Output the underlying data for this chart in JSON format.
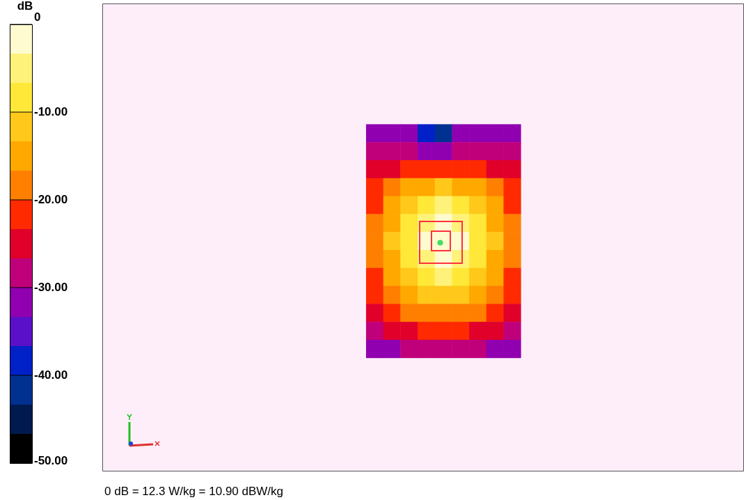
{
  "chart_data": {
    "type": "heatmap",
    "clabel": "dB",
    "annotations": [
      "0 dB = 12.3 W/kg = 10.90 dBW/kg"
    ],
    "categories": [
      null,
      null,
      null,
      null,
      null,
      null,
      null,
      null,
      null
    ],
    "y_categories": [
      null,
      null,
      null,
      null,
      null,
      null,
      null,
      null,
      null,
      null,
      null,
      null,
      null
    ],
    "cells": [
      [
        -30,
        -30,
        -31,
        -38,
        -42,
        -33,
        -30,
        -30,
        -30
      ],
      [
        -28,
        -28,
        -28,
        -30,
        -31,
        -29,
        -28,
        -28,
        -28
      ],
      [
        -25,
        -24,
        -23,
        -22,
        -22,
        -22,
        -23,
        -24,
        -25
      ],
      [
        -22,
        -19,
        -16,
        -14,
        -13,
        -14,
        -16,
        -19,
        -22
      ],
      [
        -20,
        -16,
        -12,
        -8,
        -6,
        -8,
        -12,
        -16,
        -20
      ],
      [
        -19,
        -14,
        -9,
        -4,
        -2,
        -4,
        -9,
        -14,
        -19
      ],
      [
        -19,
        -13,
        -8,
        -3,
        -1,
        -3,
        -8,
        -13,
        -19
      ],
      [
        -19,
        -14,
        -9,
        -4,
        -2,
        -4,
        -9,
        -14,
        -19
      ],
      [
        -20,
        -15,
        -11,
        -7,
        -5,
        -7,
        -11,
        -15,
        -20
      ],
      [
        -21,
        -17,
        -14,
        -12,
        -11,
        -12,
        -14,
        -17,
        -21
      ],
      [
        -24,
        -21,
        -19,
        -18,
        -18,
        -18,
        -19,
        -21,
        -24
      ],
      [
        -27,
        -26,
        -24,
        -23,
        -23,
        -23,
        -24,
        -26,
        -27
      ],
      [
        -31,
        -30,
        -29,
        -29,
        -29,
        -29,
        -29,
        -30,
        -31
      ]
    ],
    "clim": [
      -50,
      0
    ],
    "cticks": [
      {
        "value": 0,
        "label": "0"
      },
      {
        "value": -10,
        "label": "-10.00"
      },
      {
        "value": -20,
        "label": "-20.00"
      },
      {
        "value": -30,
        "label": "-30.00"
      },
      {
        "value": -40,
        "label": "-40.00"
      },
      {
        "value": -50,
        "label": "-50.00"
      }
    ],
    "colors": [
      "#fffbd0",
      "#fff27a",
      "#ffe838",
      "#ffc81a",
      "#ffa800",
      "#ff7f00",
      "#ff2a00",
      "#e0002a",
      "#c0007a",
      "#9000b0",
      "#5a10c8",
      "#0020c8",
      "#003090",
      "#001a50",
      "#000000"
    ],
    "tick_labels": false,
    "legend": false
  }
}
